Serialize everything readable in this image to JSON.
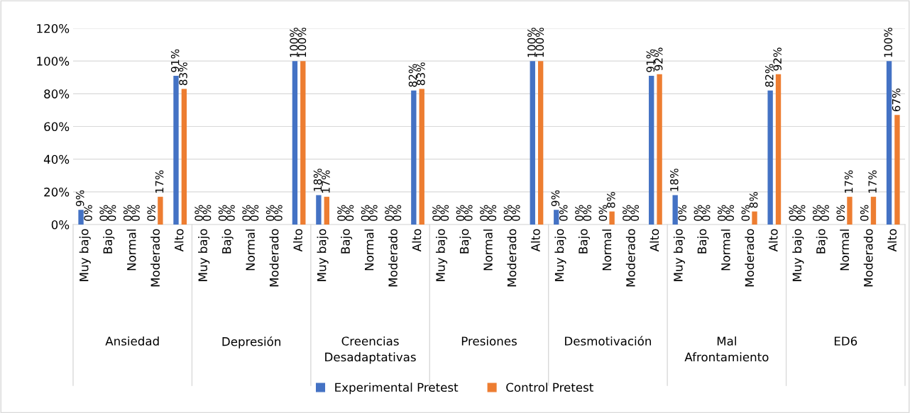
{
  "chart_data": {
    "type": "bar",
    "categories": [
      "Muy bajo",
      "Bajo",
      "Normal",
      "Moderado",
      "Alto",
      "Muy bajo",
      "Bajo",
      "Normal",
      "Moderado",
      "Alto",
      "Muy bajo",
      "Bajo",
      "Normal",
      "Moderado",
      "Alto",
      "Muy bajo",
      "Bajo",
      "Normal",
      "Moderado",
      "Alto",
      "Muy bajo",
      "Bajo",
      "Normal",
      "Moderado",
      "Alto",
      "Muy bajo",
      "Bajo",
      "Normal",
      "Moderado",
      "Alto",
      "Muy bajo",
      "Bajo",
      "Normal",
      "Moderado",
      "Alto"
    ],
    "annotations": [
      "Ansiedad",
      "Depresión",
      "Creencias\nDesadaptativas",
      "Presiones",
      "Desmotivación",
      "Mal\nAfrontamiento",
      "ED6"
    ],
    "series": [
      {
        "name": "Experimental Pretest",
        "color": "#4472c4",
        "values": [
          9,
          0,
          0,
          0,
          91,
          0,
          0,
          0,
          0,
          100,
          18,
          0,
          0,
          0,
          82,
          0,
          0,
          0,
          0,
          100,
          9,
          0,
          0,
          0,
          91,
          18,
          0,
          0,
          0,
          82,
          0,
          0,
          0,
          0,
          100
        ],
        "value_labels": [
          "9%",
          "0%",
          "0%",
          "0%",
          "91%",
          "0%",
          "0%",
          "0%",
          "0%",
          "100%",
          "18%",
          "0%",
          "0%",
          "0%",
          "82%",
          "0%",
          "0%",
          "0%",
          "0%",
          "100%",
          "9%",
          "0%",
          "0%",
          "0%",
          "91%",
          "18%",
          "0%",
          "0%",
          "0%",
          "82%",
          "0%",
          "0%",
          "0%",
          "0%",
          "100%"
        ]
      },
      {
        "name": "Control Pretest",
        "color": "#ed7d31",
        "values": [
          0,
          0,
          0,
          17,
          83,
          0,
          0,
          0,
          0,
          100,
          17,
          0,
          0,
          0,
          83,
          0,
          0,
          0,
          0,
          100,
          0,
          0,
          8,
          0,
          92,
          0,
          0,
          0,
          8,
          92,
          0,
          0,
          17,
          17,
          67
        ],
        "value_labels": [
          "0%",
          "0%",
          "0%",
          "17%",
          "83%",
          "0%",
          "0%",
          "0%",
          "0%",
          "100%",
          "17%",
          "0%",
          "0%",
          "0%",
          "83%",
          "0%",
          "0%",
          "0%",
          "0%",
          "100%",
          "0%",
          "0%",
          "8%",
          "0%",
          "92%",
          "0%",
          "0%",
          "0%",
          "8%",
          "92%",
          "0%",
          "0%",
          "17%",
          "17%",
          "67%"
        ]
      }
    ],
    "ylim": [
      0,
      120
    ],
    "yticks": [
      {
        "value": 0,
        "label": "0%"
      },
      {
        "value": 20,
        "label": "20%"
      },
      {
        "value": 40,
        "label": "40%"
      },
      {
        "value": 60,
        "label": "60%"
      },
      {
        "value": 80,
        "label": "80%"
      },
      {
        "value": 100,
        "label": "100%"
      },
      {
        "value": 120,
        "label": "120%"
      }
    ],
    "grid": "y",
    "legend": "bottom"
  }
}
